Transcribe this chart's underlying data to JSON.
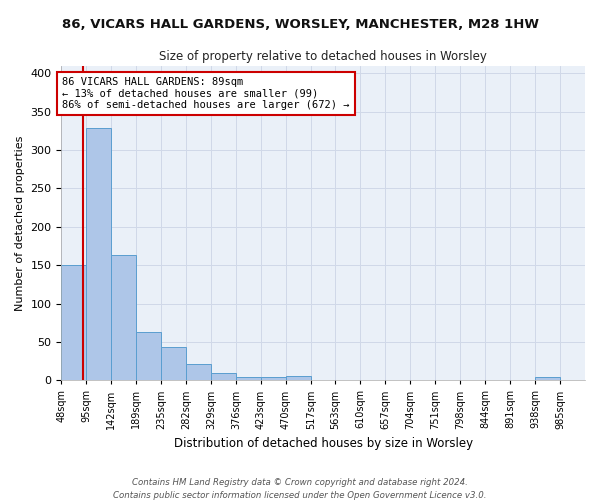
{
  "title": "86, VICARS HALL GARDENS, WORSLEY, MANCHESTER, M28 1HW",
  "subtitle": "Size of property relative to detached houses in Worsley",
  "xlabel": "Distribution of detached houses by size in Worsley",
  "ylabel": "Number of detached properties",
  "bin_labels": [
    "48sqm",
    "95sqm",
    "142sqm",
    "189sqm",
    "235sqm",
    "282sqm",
    "329sqm",
    "376sqm",
    "423sqm",
    "470sqm",
    "517sqm",
    "563sqm",
    "610sqm",
    "657sqm",
    "704sqm",
    "751sqm",
    "798sqm",
    "844sqm",
    "891sqm",
    "938sqm",
    "985sqm"
  ],
  "bin_edges": [
    48,
    95,
    142,
    189,
    235,
    282,
    329,
    376,
    423,
    470,
    517,
    563,
    610,
    657,
    704,
    751,
    798,
    844,
    891,
    938,
    985
  ],
  "bar_values": [
    150,
    328,
    163,
    63,
    43,
    21,
    10,
    4,
    4,
    5,
    0,
    0,
    0,
    0,
    0,
    0,
    0,
    0,
    0,
    4
  ],
  "bar_color": "#aec6e8",
  "bar_edge_color": "#5a9ed0",
  "property_size": 89,
  "red_line_x": 89,
  "annotation_text": "86 VICARS HALL GARDENS: 89sqm\n← 13% of detached houses are smaller (99)\n86% of semi-detached houses are larger (672) →",
  "annotation_box_color": "#ffffff",
  "annotation_box_edge": "#cc0000",
  "red_line_color": "#cc0000",
  "grid_color": "#d0d8e8",
  "bg_color": "#eaf0f8",
  "footer_text": "Contains HM Land Registry data © Crown copyright and database right 2024.\nContains public sector information licensed under the Open Government Licence v3.0.",
  "ylim": [
    0,
    410
  ],
  "yticks": [
    0,
    50,
    100,
    150,
    200,
    250,
    300,
    350,
    400
  ]
}
